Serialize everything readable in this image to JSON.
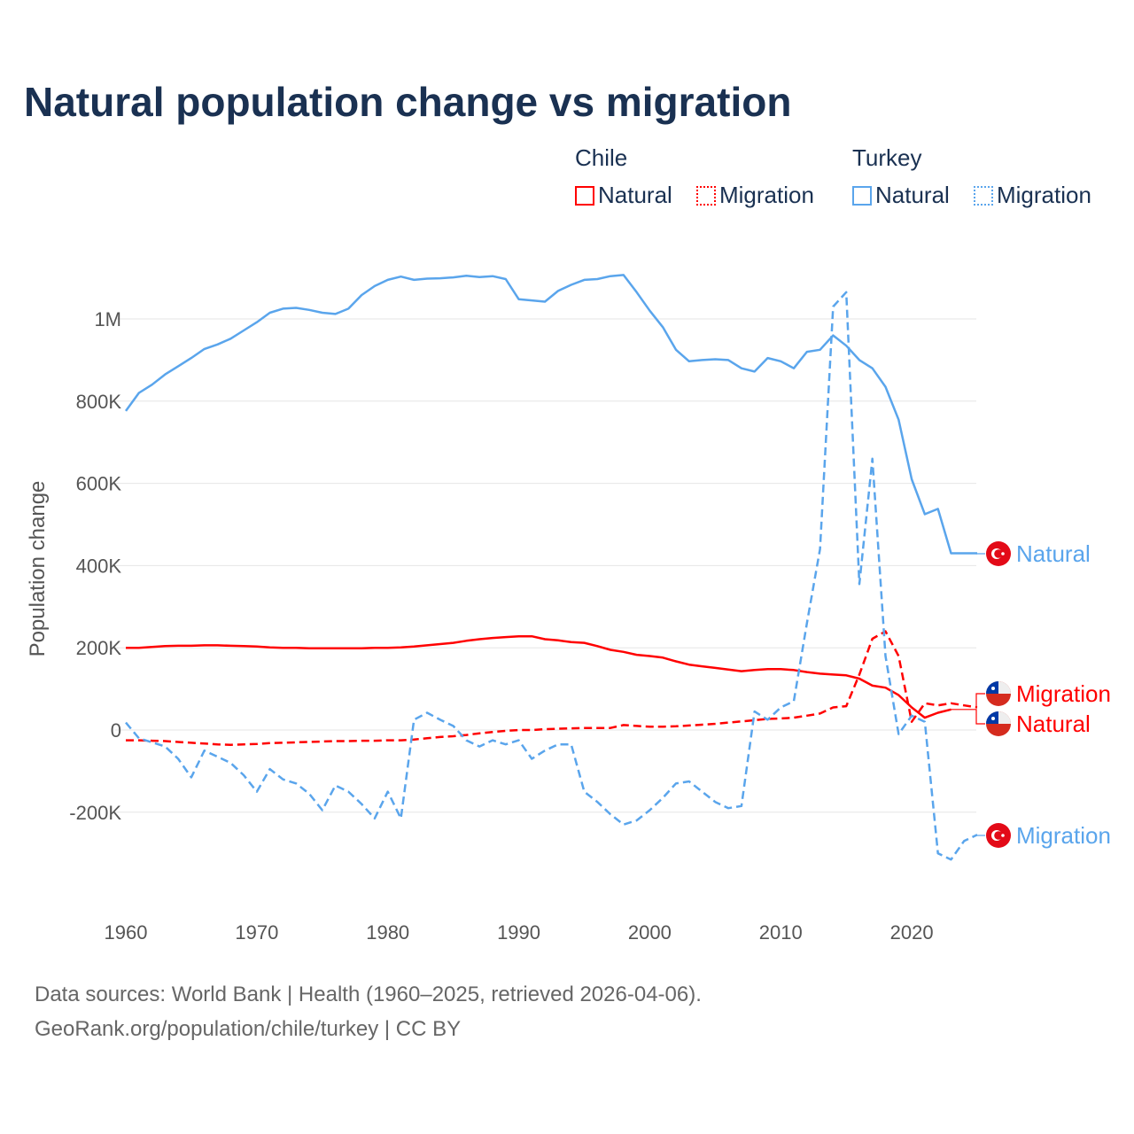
{
  "title": "Natural population change vs migration",
  "legend": {
    "groups": [
      {
        "name": "Chile",
        "items": [
          "Natural",
          "Migration"
        ],
        "color": "#ff0000"
      },
      {
        "name": "Turkey",
        "items": [
          "Natural",
          "Migration"
        ],
        "color": "#5aa5ec"
      }
    ]
  },
  "footer": {
    "line1": "Data sources: World Bank | Health (1960–2025, retrieved 2026-04-06).",
    "line2": "GeoRank.org/population/chile/turkey | CC BY"
  },
  "chart_data": {
    "type": "line",
    "title": "Natural population change vs migration",
    "xlabel": "",
    "ylabel": "Population change",
    "xlim": [
      1960,
      2025
    ],
    "ylim": [
      -400000,
      1150000
    ],
    "x_ticks": [
      1960,
      1970,
      1980,
      1990,
      2000,
      2010,
      2020
    ],
    "x_tick_labels": [
      "1960",
      "1970",
      "1980",
      "1990",
      "2000",
      "2010",
      "2020"
    ],
    "y_ticks": [
      -200000,
      0,
      200000,
      400000,
      600000,
      800000,
      1000000
    ],
    "y_tick_labels": [
      "-200K",
      "0",
      "200K",
      "400K",
      "600K",
      "800K",
      "1M"
    ],
    "grid": true,
    "x_start": 1960,
    "series": [
      {
        "name": "Turkey Natural",
        "label": "Natural",
        "country": "Turkey",
        "color": "#5aa5ec",
        "dash": false,
        "values_k": [
          776,
          820,
          840,
          865,
          885,
          905,
          927,
          938,
          952,
          972,
          992,
          1015,
          1025,
          1027,
          1022,
          1015,
          1012,
          1025,
          1058,
          1080,
          1095,
          1103,
          1095,
          1098,
          1099,
          1101,
          1105,
          1102,
          1104,
          1097,
          1048,
          1045,
          1042,
          1068,
          1083,
          1095,
          1097,
          1104,
          1107,
          1065,
          1020,
          980,
          925,
          897,
          900,
          902,
          900,
          880,
          872,
          905,
          897,
          880,
          920,
          925,
          960,
          935,
          900,
          880,
          835,
          755,
          610,
          525,
          538,
          430,
          430,
          430
        ]
      },
      {
        "name": "Chile Migration",
        "label": "Migration",
        "country": "Chile",
        "color": "#ff0000",
        "dash": true,
        "values_k": [
          -25,
          -25,
          -26,
          -27,
          -29,
          -31,
          -33,
          -35,
          -36,
          -35,
          -34,
          -32,
          -31,
          -30,
          -29,
          -28,
          -27,
          -27,
          -26,
          -26,
          -25,
          -25,
          -23,
          -20,
          -17,
          -15,
          -12,
          -8,
          -5,
          -2,
          0,
          0,
          2,
          3,
          4,
          5,
          5,
          5,
          12,
          10,
          8,
          8,
          9,
          11,
          13,
          15,
          18,
          21,
          24,
          27,
          28,
          30,
          35,
          40,
          55,
          58,
          135,
          222,
          240,
          180,
          20,
          65,
          60,
          65,
          60,
          55
        ]
      },
      {
        "name": "Chile Natural",
        "label": "Natural",
        "country": "Chile",
        "color": "#ff0000",
        "dash": false,
        "values_k": [
          200,
          200,
          202,
          204,
          205,
          205,
          206,
          206,
          205,
          204,
          203,
          201,
          200,
          200,
          199,
          199,
          199,
          199,
          199,
          200,
          200,
          201,
          203,
          206,
          209,
          212,
          217,
          221,
          224,
          226,
          228,
          228,
          221,
          218,
          214,
          212,
          204,
          195,
          190,
          183,
          180,
          176,
          167,
          159,
          155,
          151,
          147,
          143,
          146,
          148,
          148,
          146,
          141,
          137,
          135,
          133,
          125,
          108,
          103,
          85,
          55,
          30,
          42,
          50,
          null,
          null
        ]
      },
      {
        "name": "Turkey Migration",
        "label": "Migration",
        "country": "Turkey",
        "color": "#5aa5ec",
        "dash": true,
        "values_k": [
          18,
          -20,
          -30,
          -40,
          -70,
          -115,
          -50,
          -65,
          -80,
          -110,
          -150,
          -95,
          -120,
          -130,
          -155,
          -195,
          -135,
          -150,
          -180,
          -215,
          -150,
          -215,
          25,
          42,
          25,
          10,
          -25,
          -40,
          -25,
          -35,
          -25,
          -70,
          -50,
          -35,
          -35,
          -150,
          -175,
          -205,
          -230,
          -220,
          -195,
          -165,
          -130,
          -125,
          -150,
          -175,
          -190,
          -185,
          45,
          25,
          55,
          70,
          260,
          440,
          1030,
          1065,
          355,
          660,
          180,
          -10,
          35,
          20,
          -300,
          -315,
          -270,
          -255
        ]
      }
    ]
  }
}
